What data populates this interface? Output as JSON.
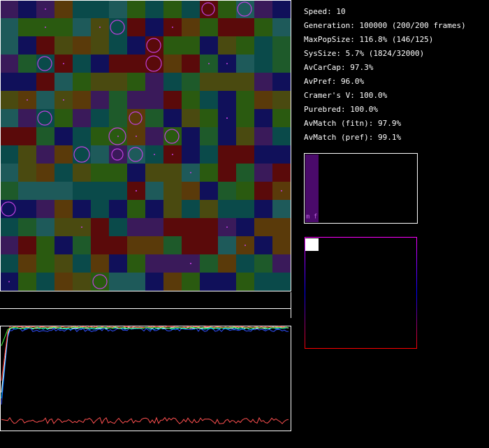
{
  "stats": [
    "Speed: 10",
    "Generation: 100000 (200/200 frames)",
    "MaxPopSize: 116.8% (146/125)",
    "SysSize: 5.7% (1824/32000)",
    "AvCarCap: 97.3%",
    "AvPref: 96.0%",
    "Cramer's V: 100.0%",
    "Purebred: 100.0%",
    "AvMatch (fitn): 97.9%",
    "AvMatch (pref): 99.1%"
  ],
  "histogram_labels": "m f"
}
